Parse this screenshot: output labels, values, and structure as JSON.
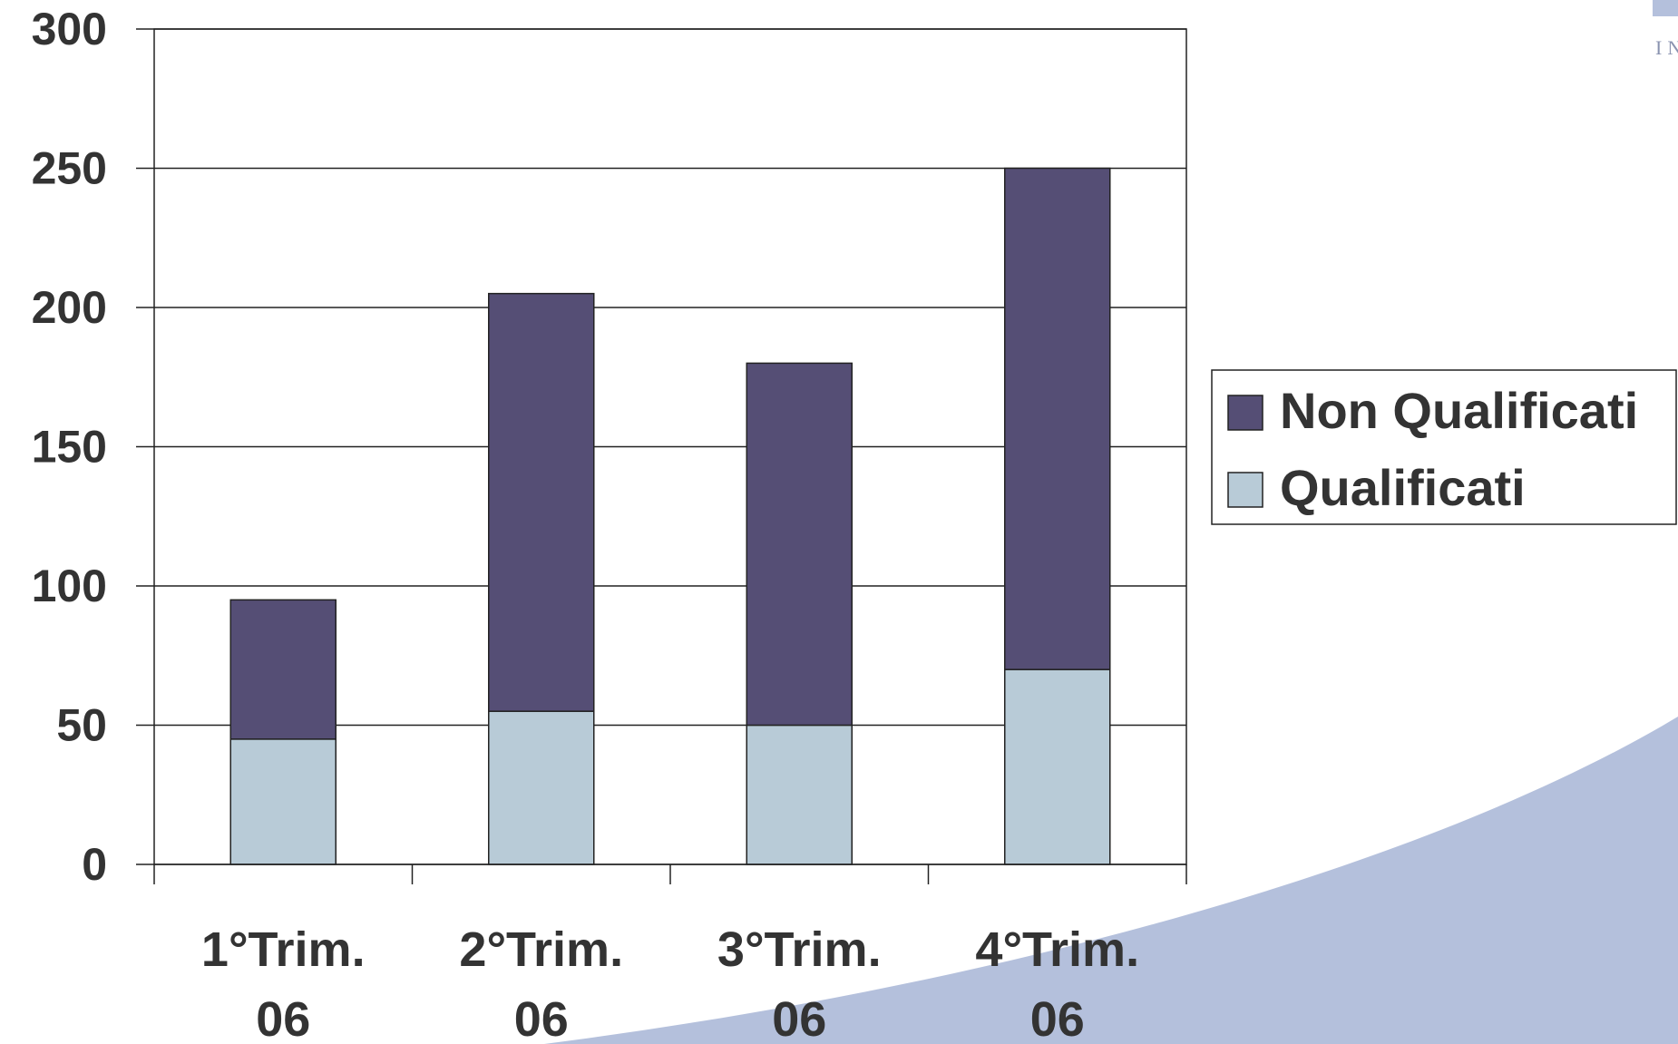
{
  "chart_data": {
    "type": "bar",
    "stacked": true,
    "title": "",
    "xlabel": "",
    "ylabel": "",
    "categories": [
      [
        "1°Trim.",
        "06"
      ],
      [
        "2°Trim.",
        "06"
      ],
      [
        "3°Trim.",
        "06"
      ],
      [
        "4°Trim.",
        "06"
      ]
    ],
    "series": [
      {
        "name": "Qualificati",
        "values": [
          45,
          55,
          50,
          70
        ],
        "color": "#b8cbd7"
      },
      {
        "name": "Non Qualificati",
        "values": [
          50,
          150,
          130,
          180
        ],
        "color": "#554e75"
      }
    ],
    "ylim": [
      0,
      300
    ],
    "yticks": [
      "0",
      "50",
      "100",
      "150",
      "200",
      "250",
      "300"
    ],
    "grid": true,
    "legend": {
      "position": "right",
      "entries": [
        "Non Qualificati",
        "Qualificati"
      ]
    }
  },
  "decor": {
    "corner_text": "IN",
    "background_swoosh_color": "#b4c0dc"
  }
}
